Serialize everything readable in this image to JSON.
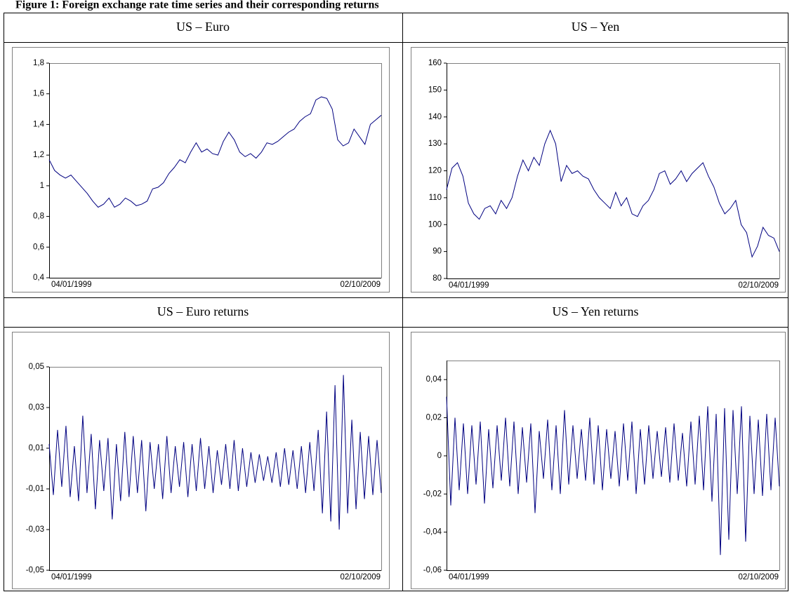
{
  "title": "Figure 1: Foreign exchange rate time series and their corresponding returns",
  "headers": [
    "US – Euro",
    "US – Yen",
    "US – Euro returns",
    "US – Yen returns"
  ],
  "chart_data": [
    {
      "type": "line",
      "color": "#000080",
      "categories": [
        "04/01/1999",
        null,
        null,
        null,
        null,
        null,
        null,
        null,
        null,
        null,
        null,
        null,
        null,
        null,
        null,
        null,
        null,
        null,
        null,
        null,
        null,
        null,
        null,
        null,
        null,
        null,
        null,
        null,
        null,
        null,
        null,
        null,
        null,
        null,
        null,
        null,
        null,
        null,
        null,
        null,
        null,
        null,
        null,
        null,
        null,
        null,
        null,
        null,
        null,
        null,
        null,
        null,
        null,
        null,
        null,
        null,
        null,
        null,
        null,
        null,
        null,
        "02/10/2009"
      ],
      "values": [
        1.17,
        1.1,
        1.07,
        1.05,
        1.07,
        1.03,
        0.99,
        0.95,
        0.9,
        0.86,
        0.88,
        0.92,
        0.86,
        0.88,
        0.92,
        0.9,
        0.87,
        0.88,
        0.9,
        0.98,
        0.99,
        1.02,
        1.08,
        1.12,
        1.17,
        1.15,
        1.22,
        1.28,
        1.22,
        1.24,
        1.21,
        1.2,
        1.29,
        1.35,
        1.3,
        1.22,
        1.19,
        1.21,
        1.18,
        1.22,
        1.28,
        1.27,
        1.29,
        1.32,
        1.35,
        1.37,
        1.42,
        1.45,
        1.47,
        1.56,
        1.58,
        1.57,
        1.5,
        1.3,
        1.26,
        1.28,
        1.37,
        1.32,
        1.27,
        1.4,
        1.43,
        1.46
      ],
      "ylim": [
        0.4,
        1.8
      ],
      "yticks": [
        {
          "value": 0.4,
          "label": "0,4"
        },
        {
          "value": 0.6,
          "label": "0,6"
        },
        {
          "value": 0.8,
          "label": "0,8"
        },
        1,
        {
          "value": 1.2,
          "label": "1,2"
        },
        {
          "value": 1.4,
          "label": "1,4"
        },
        {
          "value": 1.6,
          "label": "1,6"
        },
        {
          "value": 1.8,
          "label": "1,8"
        }
      ]
    },
    {
      "type": "line",
      "color": "#000080",
      "categories": [
        "04/01/1999",
        null,
        null,
        null,
        null,
        null,
        null,
        null,
        null,
        null,
        null,
        null,
        null,
        null,
        null,
        null,
        null,
        null,
        null,
        null,
        null,
        null,
        null,
        null,
        null,
        null,
        null,
        null,
        null,
        null,
        null,
        null,
        null,
        null,
        null,
        null,
        null,
        null,
        null,
        null,
        null,
        null,
        null,
        null,
        null,
        null,
        null,
        null,
        null,
        null,
        null,
        null,
        null,
        null,
        null,
        null,
        null,
        null,
        null,
        null,
        null,
        "02/10/2009"
      ],
      "values": [
        113,
        121,
        123,
        118,
        108,
        104,
        102,
        106,
        107,
        104,
        109,
        106,
        110,
        118,
        124,
        120,
        125,
        122,
        130,
        135,
        130,
        116,
        122,
        119,
        120,
        118,
        117,
        113,
        110,
        108,
        106,
        112,
        107,
        110,
        104,
        103,
        107,
        109,
        113,
        119,
        120,
        115,
        117,
        120,
        116,
        119,
        121,
        123,
        118,
        114,
        108,
        104,
        106,
        109,
        100,
        97,
        88,
        92,
        99,
        96,
        95,
        90
      ],
      "ylim": [
        80,
        160
      ],
      "yticks": [
        80,
        90,
        100,
        110,
        120,
        130,
        140,
        150,
        160
      ]
    },
    {
      "type": "line",
      "color": "#000080",
      "categories": [
        "04/01/1999",
        null,
        null,
        null,
        null,
        null,
        null,
        null,
        null,
        null,
        null,
        null,
        null,
        null,
        null,
        null,
        null,
        null,
        null,
        null,
        null,
        null,
        null,
        null,
        null,
        null,
        null,
        null,
        null,
        null,
        null,
        null,
        null,
        null,
        null,
        null,
        null,
        null,
        null,
        null,
        null,
        null,
        null,
        null,
        null,
        null,
        null,
        null,
        null,
        null,
        null,
        null,
        null,
        null,
        null,
        null,
        null,
        null,
        null,
        null,
        null,
        null,
        null,
        null,
        null,
        null,
        null,
        null,
        null,
        null,
        null,
        null,
        null,
        null,
        null,
        null,
        null,
        null,
        null,
        "02/10/2009"
      ],
      "values": [
        0.012,
        -0.013,
        0.019,
        -0.009,
        0.021,
        -0.014,
        0.011,
        -0.016,
        0.026,
        -0.012,
        0.017,
        -0.02,
        0.014,
        -0.011,
        0.015,
        -0.025,
        0.012,
        -0.016,
        0.018,
        -0.014,
        0.016,
        -0.012,
        0.014,
        -0.021,
        0.013,
        -0.01,
        0.012,
        -0.015,
        0.016,
        -0.012,
        0.011,
        -0.009,
        0.013,
        -0.014,
        0.012,
        -0.011,
        0.015,
        -0.01,
        0.011,
        -0.012,
        0.009,
        -0.008,
        0.012,
        -0.01,
        0.014,
        -0.011,
        0.01,
        -0.009,
        0.008,
        -0.007,
        0.007,
        -0.006,
        0.006,
        -0.007,
        0.008,
        -0.009,
        0.01,
        -0.008,
        0.009,
        -0.01,
        0.011,
        -0.012,
        0.013,
        -0.011,
        0.019,
        -0.022,
        0.028,
        -0.026,
        0.041,
        -0.03,
        0.046,
        -0.022,
        0.024,
        -0.02,
        0.018,
        -0.015,
        0.016,
        -0.013,
        0.014,
        -0.012
      ],
      "ylim": [
        -0.05,
        0.05
      ],
      "yticks": [
        {
          "value": -0.05,
          "label": "-0,05"
        },
        {
          "value": -0.03,
          "label": "-0,03"
        },
        {
          "value": -0.01,
          "label": "-0,01"
        },
        {
          "value": 0.01,
          "label": "0,01"
        },
        {
          "value": 0.03,
          "label": "0,03"
        },
        {
          "value": 0.05,
          "label": "0,05"
        }
      ]
    },
    {
      "type": "line",
      "color": "#000080",
      "categories": [
        "04/01/1999",
        null,
        null,
        null,
        null,
        null,
        null,
        null,
        null,
        null,
        null,
        null,
        null,
        null,
        null,
        null,
        null,
        null,
        null,
        null,
        null,
        null,
        null,
        null,
        null,
        null,
        null,
        null,
        null,
        null,
        null,
        null,
        null,
        null,
        null,
        null,
        null,
        null,
        null,
        null,
        null,
        null,
        null,
        null,
        null,
        null,
        null,
        null,
        null,
        null,
        null,
        null,
        null,
        null,
        null,
        null,
        null,
        null,
        null,
        null,
        null,
        null,
        null,
        null,
        null,
        null,
        null,
        null,
        null,
        null,
        null,
        null,
        null,
        null,
        null,
        null,
        null,
        null,
        null,
        "02/10/2009"
      ],
      "values": [
        0.031,
        -0.026,
        0.02,
        -0.018,
        0.017,
        -0.02,
        0.016,
        -0.015,
        0.018,
        -0.025,
        0.014,
        -0.017,
        0.016,
        -0.013,
        0.02,
        -0.016,
        0.018,
        -0.02,
        0.015,
        -0.014,
        0.017,
        -0.03,
        0.013,
        -0.012,
        0.019,
        -0.018,
        0.016,
        -0.02,
        0.024,
        -0.015,
        0.016,
        -0.012,
        0.014,
        -0.013,
        0.02,
        -0.015,
        0.016,
        -0.018,
        0.014,
        -0.012,
        0.013,
        -0.016,
        0.017,
        -0.013,
        0.018,
        -0.02,
        0.014,
        -0.015,
        0.016,
        -0.012,
        0.013,
        -0.011,
        0.015,
        -0.014,
        0.017,
        -0.013,
        0.012,
        -0.016,
        0.018,
        -0.015,
        0.021,
        -0.018,
        0.026,
        -0.024,
        0.022,
        -0.052,
        0.025,
        -0.044,
        0.024,
        -0.02,
        0.026,
        -0.045,
        0.021,
        -0.02,
        0.019,
        -0.021,
        0.022,
        -0.018,
        0.02,
        -0.016
      ],
      "ylim": [
        -0.06,
        0.05
      ],
      "yticks": [
        {
          "value": -0.06,
          "label": "-0,06"
        },
        {
          "value": -0.04,
          "label": "-0,04"
        },
        {
          "value": -0.02,
          "label": "-0,02"
        },
        0,
        {
          "value": 0.02,
          "label": "0,02"
        },
        {
          "value": 0.04,
          "label": "0,04"
        }
      ]
    }
  ]
}
